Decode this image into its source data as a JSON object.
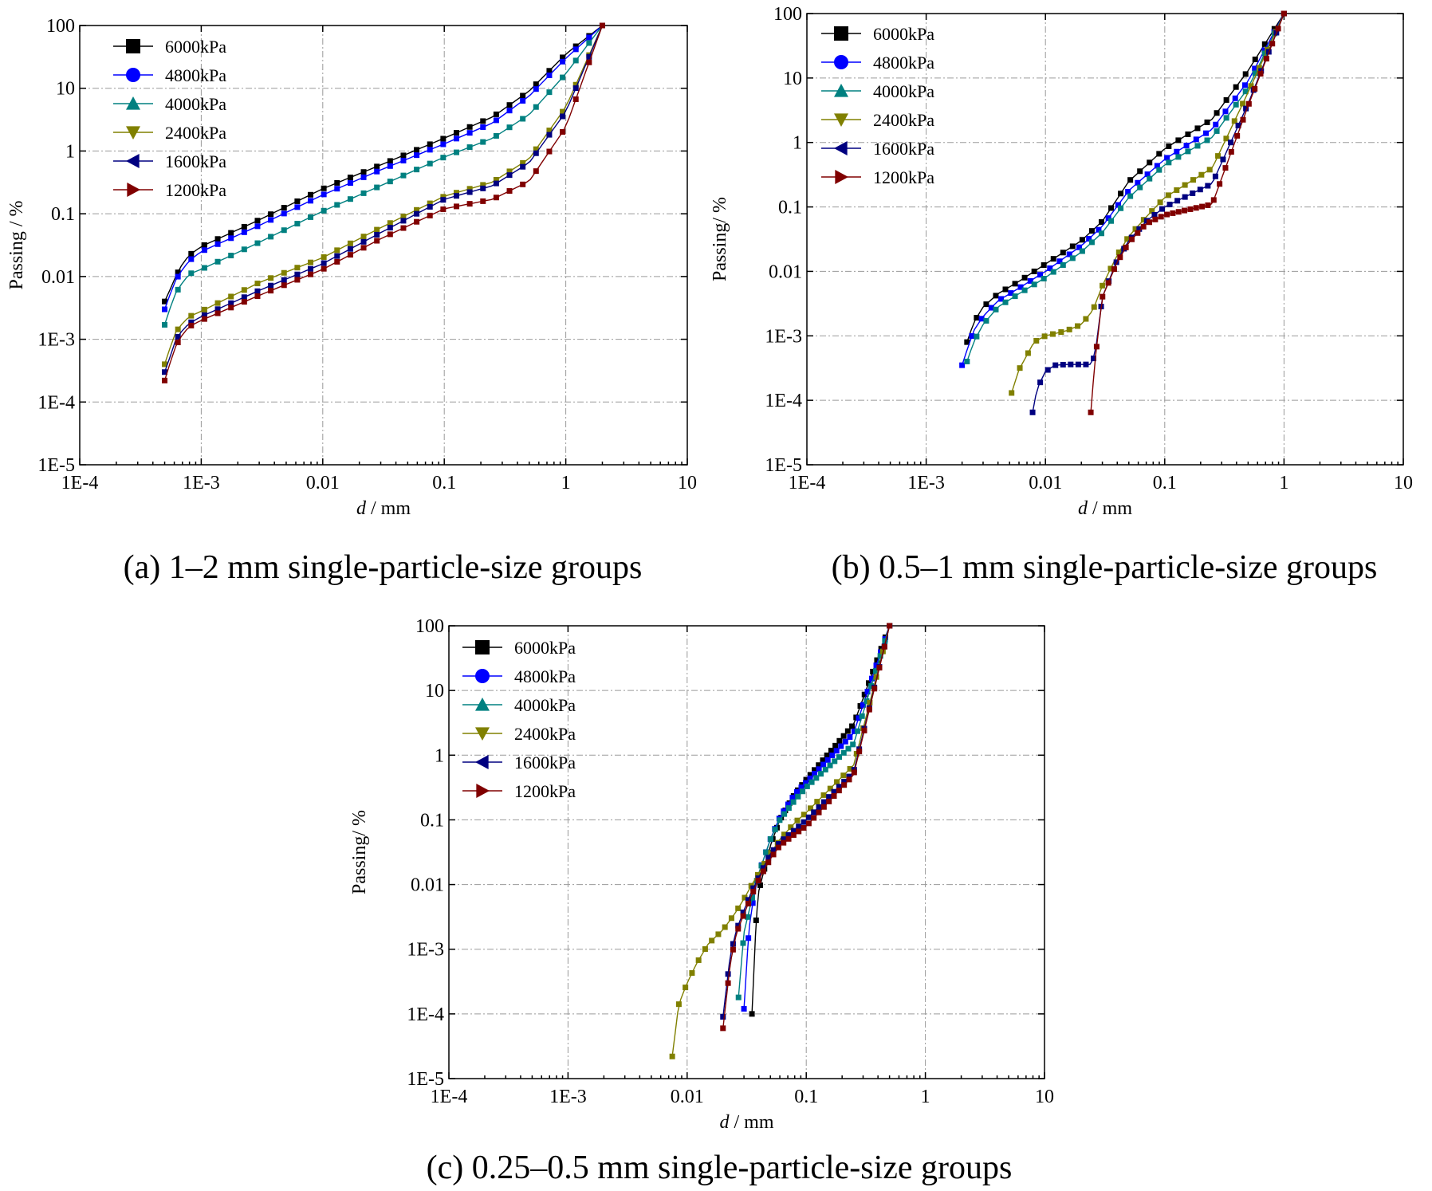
{
  "colors": {
    "6000kPa": "#000000",
    "4800kPa": "#0000ff",
    "4000kPa": "#008080",
    "2400kPa": "#808000",
    "1600kPa": "#000080",
    "1200kPa": "#800000"
  },
  "chart_data": [
    {
      "type": "line",
      "panel": "a",
      "caption": "(a) 1–2 mm single-particle-size groups",
      "xlabel_italic": "d",
      "xlabel_rest": " / mm",
      "ylabel": "Passing / %",
      "x_scale": "log",
      "y_scale": "log",
      "xlim": [
        0.0001,
        10
      ],
      "ylim": [
        1e-05,
        100
      ],
      "x_ticks": [
        "1E-4",
        "1E-3",
        "0.01",
        "0.1",
        "1",
        "10"
      ],
      "y_ticks": [
        "1E-5",
        "1E-4",
        "1E-3",
        "0.01",
        "0.1",
        "1",
        "10",
        "100"
      ],
      "grid": true,
      "legend_position": "top-left",
      "series": [
        {
          "name": "6000kPa",
          "marker": "square",
          "x": [
            0.0005,
            0.00055,
            0.0006,
            0.0007,
            0.0008,
            0.001,
            0.003,
            0.01,
            0.03,
            0.1,
            0.25,
            0.5,
            1.0,
            2.0
          ],
          "y": [
            0.004,
            0.006,
            0.009,
            0.016,
            0.022,
            0.03,
            0.08,
            0.25,
            0.6,
            1.6,
            3.5,
            9,
            35,
            100
          ]
        },
        {
          "name": "4800kPa",
          "marker": "circle",
          "x": [
            0.0005,
            0.00055,
            0.0006,
            0.0007,
            0.0008,
            0.001,
            0.003,
            0.01,
            0.03,
            0.1,
            0.25,
            0.5,
            1.0,
            2.0
          ],
          "y": [
            0.003,
            0.005,
            0.008,
            0.013,
            0.018,
            0.025,
            0.065,
            0.2,
            0.5,
            1.3,
            2.8,
            7.5,
            30,
            100
          ]
        },
        {
          "name": "4000kPa",
          "marker": "triangle-up",
          "x": [
            0.0005,
            0.00055,
            0.0006,
            0.0007,
            0.0008,
            0.001,
            0.003,
            0.01,
            0.03,
            0.1,
            0.25,
            0.5,
            1.0,
            2.0
          ],
          "y": [
            0.0017,
            0.003,
            0.005,
            0.008,
            0.011,
            0.013,
            0.035,
            0.11,
            0.28,
            0.8,
            1.6,
            3.8,
            17,
            100
          ]
        },
        {
          "name": "2400kPa",
          "marker": "triangle-down",
          "x": [
            0.0005,
            0.00055,
            0.0006,
            0.0007,
            0.0008,
            0.001,
            0.003,
            0.01,
            0.03,
            0.1,
            0.25,
            0.5,
            1.0,
            2.0
          ],
          "y": [
            0.0004,
            0.0007,
            0.0012,
            0.0018,
            0.0023,
            0.0028,
            0.008,
            0.02,
            0.06,
            0.19,
            0.32,
            0.75,
            5,
            100
          ]
        },
        {
          "name": "1600kPa",
          "marker": "triangle-left",
          "x": [
            0.0005,
            0.00055,
            0.0006,
            0.0007,
            0.0008,
            0.001,
            0.003,
            0.01,
            0.03,
            0.1,
            0.25,
            0.5,
            1.0,
            2.0
          ],
          "y": [
            0.0003,
            0.0005,
            0.0009,
            0.0014,
            0.0018,
            0.0023,
            0.006,
            0.016,
            0.05,
            0.17,
            0.28,
            0.65,
            4.2,
            100
          ]
        },
        {
          "name": "1200kPa",
          "marker": "triangle-right",
          "x": [
            0.0005,
            0.00055,
            0.0006,
            0.0007,
            0.0008,
            0.001,
            0.003,
            0.01,
            0.03,
            0.1,
            0.25,
            0.5,
            1.0,
            2.0
          ],
          "y": [
            0.00022,
            0.0004,
            0.0007,
            0.0012,
            0.0016,
            0.002,
            0.005,
            0.013,
            0.04,
            0.12,
            0.17,
            0.33,
            2.4,
            100
          ]
        }
      ]
    },
    {
      "type": "line",
      "panel": "b",
      "caption": "(b) 0.5–1 mm single-particle-size groups",
      "xlabel_italic": "d",
      "xlabel_rest": " / mm",
      "ylabel": "Passing/ %",
      "x_scale": "log",
      "y_scale": "log",
      "xlim": [
        0.0001,
        10
      ],
      "ylim": [
        1e-05,
        100
      ],
      "x_ticks": [
        "1E-4",
        "1E-3",
        "0.01",
        "0.1",
        "1",
        "10"
      ],
      "y_ticks": [
        "1E-5",
        "1E-4",
        "1E-3",
        "0.01",
        "0.1",
        "1",
        "10",
        "100"
      ],
      "grid": true,
      "legend_position": "top-left",
      "series": [
        {
          "name": "6000kPa",
          "marker": "square",
          "x": [
            0.0022,
            0.0025,
            0.003,
            0.004,
            0.006,
            0.01,
            0.02,
            0.03,
            0.05,
            0.1,
            0.25,
            0.5,
            1.0
          ],
          "y": [
            0.0008,
            0.0016,
            0.0028,
            0.0045,
            0.007,
            0.013,
            0.03,
            0.06,
            0.25,
            0.8,
            2.3,
            13,
            100
          ]
        },
        {
          "name": "4800kPa",
          "marker": "circle",
          "x": [
            0.002,
            0.0022,
            0.0025,
            0.003,
            0.004,
            0.006,
            0.01,
            0.02,
            0.03,
            0.05,
            0.1,
            0.25,
            0.5,
            1.0
          ],
          "y": [
            0.00035,
            0.0006,
            0.0012,
            0.002,
            0.0035,
            0.0055,
            0.01,
            0.025,
            0.05,
            0.18,
            0.55,
            1.6,
            9,
            100
          ]
        },
        {
          "name": "4000kPa",
          "marker": "triangle-up",
          "x": [
            0.0022,
            0.0025,
            0.003,
            0.004,
            0.006,
            0.01,
            0.02,
            0.03,
            0.05,
            0.1,
            0.25,
            0.5,
            1.0
          ],
          "y": [
            0.0004,
            0.0008,
            0.0015,
            0.0028,
            0.0045,
            0.008,
            0.02,
            0.04,
            0.14,
            0.45,
            1.2,
            7,
            100
          ]
        },
        {
          "name": "2400kPa",
          "marker": "triangle-down",
          "x": [
            0.0052,
            0.006,
            0.007,
            0.008,
            0.01,
            0.015,
            0.02,
            0.025,
            0.03,
            0.04,
            0.05,
            0.07,
            0.1,
            0.25,
            0.5,
            1.0
          ],
          "y": [
            0.00013,
            0.0003,
            0.0005,
            0.0008,
            0.001,
            0.0012,
            0.0015,
            0.0025,
            0.006,
            0.018,
            0.035,
            0.07,
            0.14,
            0.4,
            6,
            100
          ]
        },
        {
          "name": "1600kPa",
          "marker": "triangle-left",
          "x": [
            0.0078,
            0.0085,
            0.01,
            0.012,
            0.015,
            0.02,
            0.024,
            0.026,
            0.03,
            0.04,
            0.05,
            0.07,
            0.1,
            0.25,
            0.5,
            1.0
          ],
          "y": [
            6.5e-05,
            0.00015,
            0.00028,
            0.00035,
            0.00036,
            0.00036,
            0.00036,
            0.0005,
            0.004,
            0.015,
            0.03,
            0.06,
            0.1,
            0.23,
            4,
            100
          ]
        },
        {
          "name": "1200kPa",
          "marker": "triangle-right",
          "x": [
            0.024,
            0.026,
            0.03,
            0.04,
            0.05,
            0.07,
            0.1,
            0.25,
            0.5,
            1.0
          ],
          "y": [
            6.5e-05,
            0.0004,
            0.004,
            0.014,
            0.028,
            0.055,
            0.075,
            0.11,
            3.7,
            100
          ]
        }
      ]
    },
    {
      "type": "line",
      "panel": "c",
      "caption": "(c) 0.25–0.5 mm single-particle-size groups",
      "xlabel_italic": "d",
      "xlabel_rest": " / mm",
      "ylabel": "Passing/ %",
      "x_scale": "log",
      "y_scale": "log",
      "xlim": [
        0.0001,
        10
      ],
      "ylim": [
        1e-05,
        100
      ],
      "x_ticks": [
        "1E-4",
        "1E-3",
        "0.01",
        "0.1",
        "1",
        "10"
      ],
      "y_ticks": [
        "1E-5",
        "1E-4",
        "1E-3",
        "0.01",
        "0.1",
        "1",
        "10",
        "100"
      ],
      "grid": true,
      "legend_position": "top-left",
      "series": [
        {
          "name": "6000kPa",
          "marker": "square",
          "x": [
            0.035,
            0.038,
            0.04,
            0.05,
            0.06,
            0.08,
            0.1,
            0.25,
            0.5
          ],
          "y": [
            0.0001,
            0.003,
            0.008,
            0.04,
            0.1,
            0.25,
            0.42,
            3.0,
            100
          ]
        },
        {
          "name": "4800kPa",
          "marker": "circle",
          "x": [
            0.03,
            0.033,
            0.036,
            0.04,
            0.05,
            0.06,
            0.08,
            0.1,
            0.25,
            0.5
          ],
          "y": [
            0.00012,
            0.002,
            0.006,
            0.015,
            0.05,
            0.11,
            0.25,
            0.38,
            2.2,
            100
          ]
        },
        {
          "name": "4000kPa",
          "marker": "triangle-up",
          "x": [
            0.027,
            0.03,
            0.035,
            0.04,
            0.05,
            0.06,
            0.08,
            0.1,
            0.25,
            0.5
          ],
          "y": [
            0.00018,
            0.0018,
            0.006,
            0.015,
            0.05,
            0.1,
            0.2,
            0.32,
            1.5,
            100
          ]
        },
        {
          "name": "2400kPa",
          "marker": "triangle-down",
          "x": [
            0.0075,
            0.0085,
            0.01,
            0.012,
            0.015,
            0.02,
            0.025,
            0.03,
            0.035,
            0.04,
            0.05,
            0.06,
            0.08,
            0.1,
            0.25,
            0.5
          ],
          "y": [
            2.2e-05,
            0.00014,
            0.0003,
            0.0006,
            0.0012,
            0.002,
            0.0035,
            0.006,
            0.01,
            0.015,
            0.03,
            0.05,
            0.09,
            0.13,
            0.7,
            100
          ]
        },
        {
          "name": "1600kPa",
          "marker": "triangle-left",
          "x": [
            0.02,
            0.023,
            0.026,
            0.03,
            0.035,
            0.04,
            0.05,
            0.06,
            0.08,
            0.1,
            0.25,
            0.5
          ],
          "y": [
            9e-05,
            0.0008,
            0.002,
            0.004,
            0.008,
            0.013,
            0.03,
            0.045,
            0.07,
            0.1,
            0.55,
            100
          ]
        },
        {
          "name": "1200kPa",
          "marker": "triangle-right",
          "x": [
            0.02,
            0.023,
            0.026,
            0.03,
            0.035,
            0.04,
            0.05,
            0.06,
            0.08,
            0.1,
            0.25,
            0.5
          ],
          "y": [
            6e-05,
            0.0006,
            0.0018,
            0.0035,
            0.007,
            0.012,
            0.025,
            0.04,
            0.06,
            0.08,
            0.5,
            100
          ]
        }
      ]
    }
  ]
}
